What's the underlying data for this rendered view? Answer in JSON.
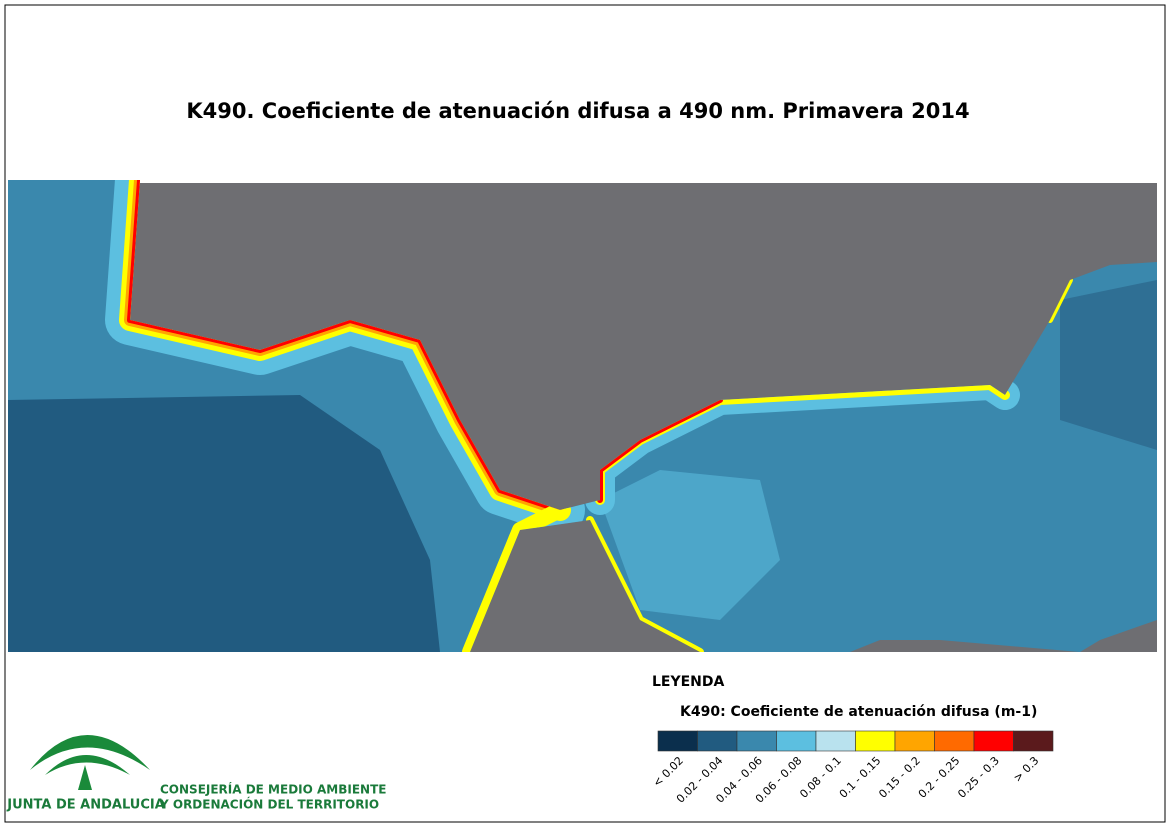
{
  "title": "K490. Coeficiente de atenuación difusa a 490 nm. Primavera 2014",
  "legend": {
    "heading": "LEYENDA",
    "title": "K490: Coeficiente de atenuación difusa (m-1)",
    "classes": [
      {
        "label": "< 0.02",
        "color": "#0b2f4d"
      },
      {
        "label": "0.02 - 0.04",
        "color": "#215b80"
      },
      {
        "label": "0.04 - 0.06",
        "color": "#3a88ad"
      },
      {
        "label": "0.06 - 0.08",
        "color": "#5cbfe0"
      },
      {
        "label": "0.08 - 0.1",
        "color": "#b9e2ee"
      },
      {
        "label": "0.1 - 0.15",
        "color": "#ffff00"
      },
      {
        "label": "0.15 - 0.2",
        "color": "#ffa500"
      },
      {
        "label": "0.2 - 0.25",
        "color": "#ff6a00"
      },
      {
        "label": "0.25 - 0.3",
        "color": "#ff0000"
      },
      {
        "label": "> 0.3",
        "color": "#5b1a1c"
      }
    ]
  },
  "logo": {
    "name": "JUNTA DE ANDALUCIA",
    "department": [
      "CONSEJERÍA DE MEDIO AMBIENTE",
      "Y ORDENACIÓN DEL TERRITORIO"
    ]
  }
}
